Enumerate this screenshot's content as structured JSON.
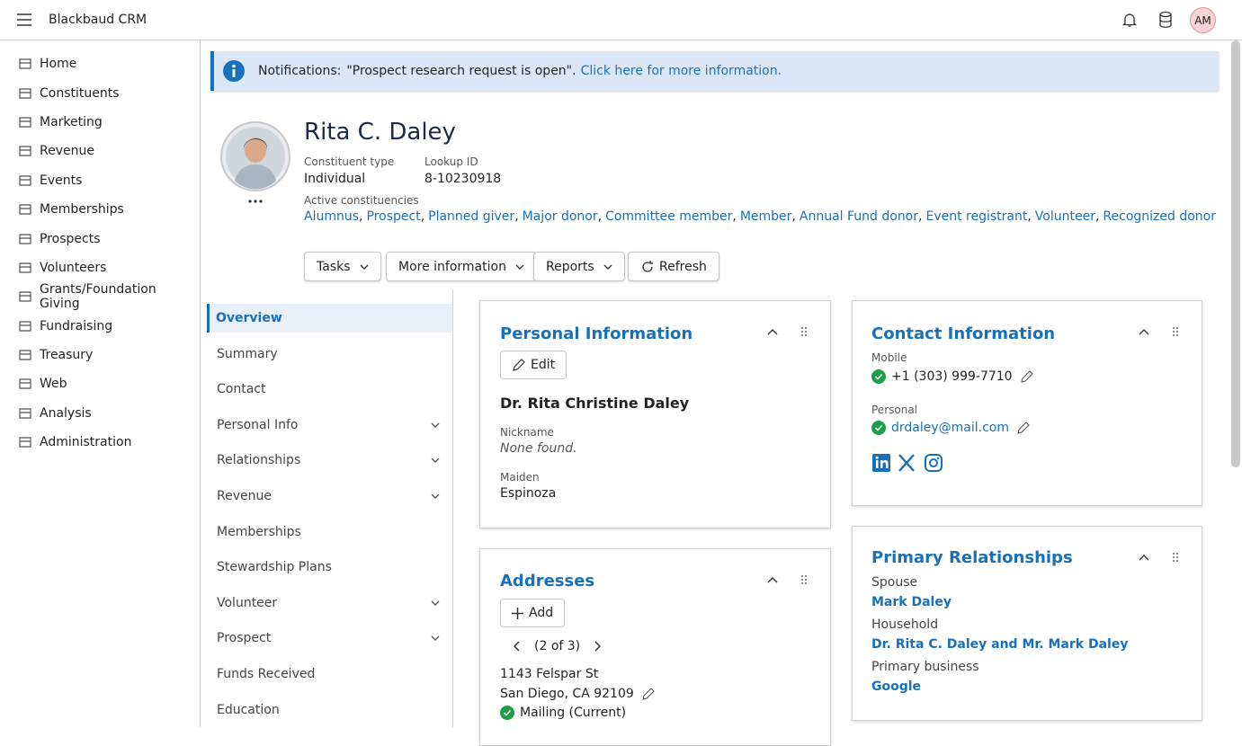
{
  "header": {
    "title": "Blackbaud CRM",
    "avatar": "AM"
  },
  "nav": [
    "Home",
    "Constituents",
    "Marketing",
    "Revenue",
    "Events",
    "Memberships",
    "Prospects",
    "Volunteers",
    "Grants/Foundation Giving",
    "Fundraising",
    "Treasury",
    "Web",
    "Analysis",
    "Administration"
  ],
  "notification": {
    "label": "Notifications:",
    "message": "\"Prospect research request is open\".",
    "link": "Click here for more information."
  },
  "profile": {
    "name": "Rita C. Daley",
    "fields": [
      {
        "label": "Constituent type",
        "value": "Individual"
      },
      {
        "label": "Lookup ID",
        "value": "8-10230918"
      }
    ],
    "constituencies_label": "Active constituencies",
    "separator": ",",
    "constituencies": [
      "Alumnus",
      "Prospect",
      "Planned giver",
      "Major donor",
      "Committee member",
      "Member",
      "Annual Fund donor",
      "Event registrant",
      "Volunteer",
      "Recognized donor"
    ]
  },
  "actions": [
    "Tasks",
    "More information",
    "Reports",
    "Refresh"
  ],
  "tabs": [
    "Overview",
    "Summary",
    "Contact",
    "Personal Info",
    "Relationships",
    "Revenue",
    "Memberships",
    "Stewardship Plans",
    "Volunteer",
    "Prospect",
    "Funds Received",
    "Education"
  ],
  "personal": {
    "title": "Personal Information",
    "button": "Edit",
    "full_name": "Dr. Rita Christine Daley",
    "fields": [
      {
        "label": "Nickname",
        "value": "None found."
      },
      {
        "label": "Maiden",
        "value": "Espinoza"
      }
    ]
  },
  "contact": {
    "title": "Contact Information",
    "items": [
      {
        "label": "Mobile",
        "value": "+1 (303) 999-7710"
      },
      {
        "label": "Personal",
        "value": "drdaley@mail.com"
      }
    ]
  },
  "addresses": {
    "title": "Addresses",
    "button": "Add",
    "pager": "(2 of 3)",
    "line1": "1143 Felspar St",
    "line2": "San Diego, CA 92109",
    "type": "Mailing (Current)"
  },
  "relationships": {
    "title": "Primary Relationships",
    "items": [
      {
        "label": "Spouse",
        "value": "Mark Daley"
      },
      {
        "label": "Household",
        "value": "Dr. Rita C. Daley and Mr. Mark Daley"
      },
      {
        "label": "Primary business",
        "value": "Google"
      }
    ]
  }
}
